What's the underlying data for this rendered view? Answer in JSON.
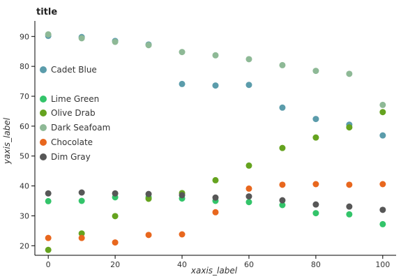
{
  "chart_data": {
    "type": "line",
    "title": "title",
    "xlabel": "xaxis_label",
    "ylabel": "yaxis_label",
    "xlim": [
      -4,
      104
    ],
    "ylim": [
      16.8,
      95.2
    ],
    "xticks": [
      0,
      20,
      40,
      60,
      80,
      100
    ],
    "yticks": [
      20,
      30,
      40,
      50,
      60,
      70,
      80,
      90
    ],
    "x": [
      0,
      10,
      20,
      30,
      40,
      50,
      60,
      70,
      80,
      90,
      100
    ],
    "grid": false,
    "legend_position": "right",
    "markers": "circle",
    "series": [
      {
        "name": "Cadet Blue",
        "color": "#5b9cab",
        "values": [
          90.2,
          89.8,
          88.5,
          87.3,
          74.1,
          73.6,
          73.8,
          66.2,
          62.4,
          60.5,
          56.9
        ]
      },
      {
        "name": "Lime Green",
        "color": "#33c46a",
        "values": [
          34.9,
          35.0,
          36.2,
          36.2,
          35.8,
          35.0,
          34.6,
          33.6,
          30.9,
          30.5,
          27.2
        ]
      },
      {
        "name": "Olive Drab",
        "color": "#65a31f",
        "values": [
          18.6,
          24.1,
          29.9,
          35.7,
          37.6,
          41.9,
          46.8,
          52.7,
          56.2,
          59.6,
          64.7
        ]
      },
      {
        "name": "Dark Seafoam",
        "color": "#8eb996",
        "values": [
          90.7,
          89.4,
          88.2,
          87.1,
          84.8,
          83.7,
          82.4,
          80.4,
          78.5,
          77.5,
          67.1
        ]
      },
      {
        "name": "Chocolate",
        "color": "#e8671e",
        "values": [
          22.6,
          22.6,
          21.1,
          23.6,
          23.8,
          31.2,
          39.1,
          40.4,
          40.6,
          40.4,
          40.6
        ]
      },
      {
        "name": "Dim Gray",
        "color": "#575757",
        "values": [
          37.5,
          37.8,
          37.5,
          37.3,
          36.9,
          36.1,
          36.5,
          35.2,
          33.8,
          33.1,
          32.0
        ]
      }
    ]
  }
}
